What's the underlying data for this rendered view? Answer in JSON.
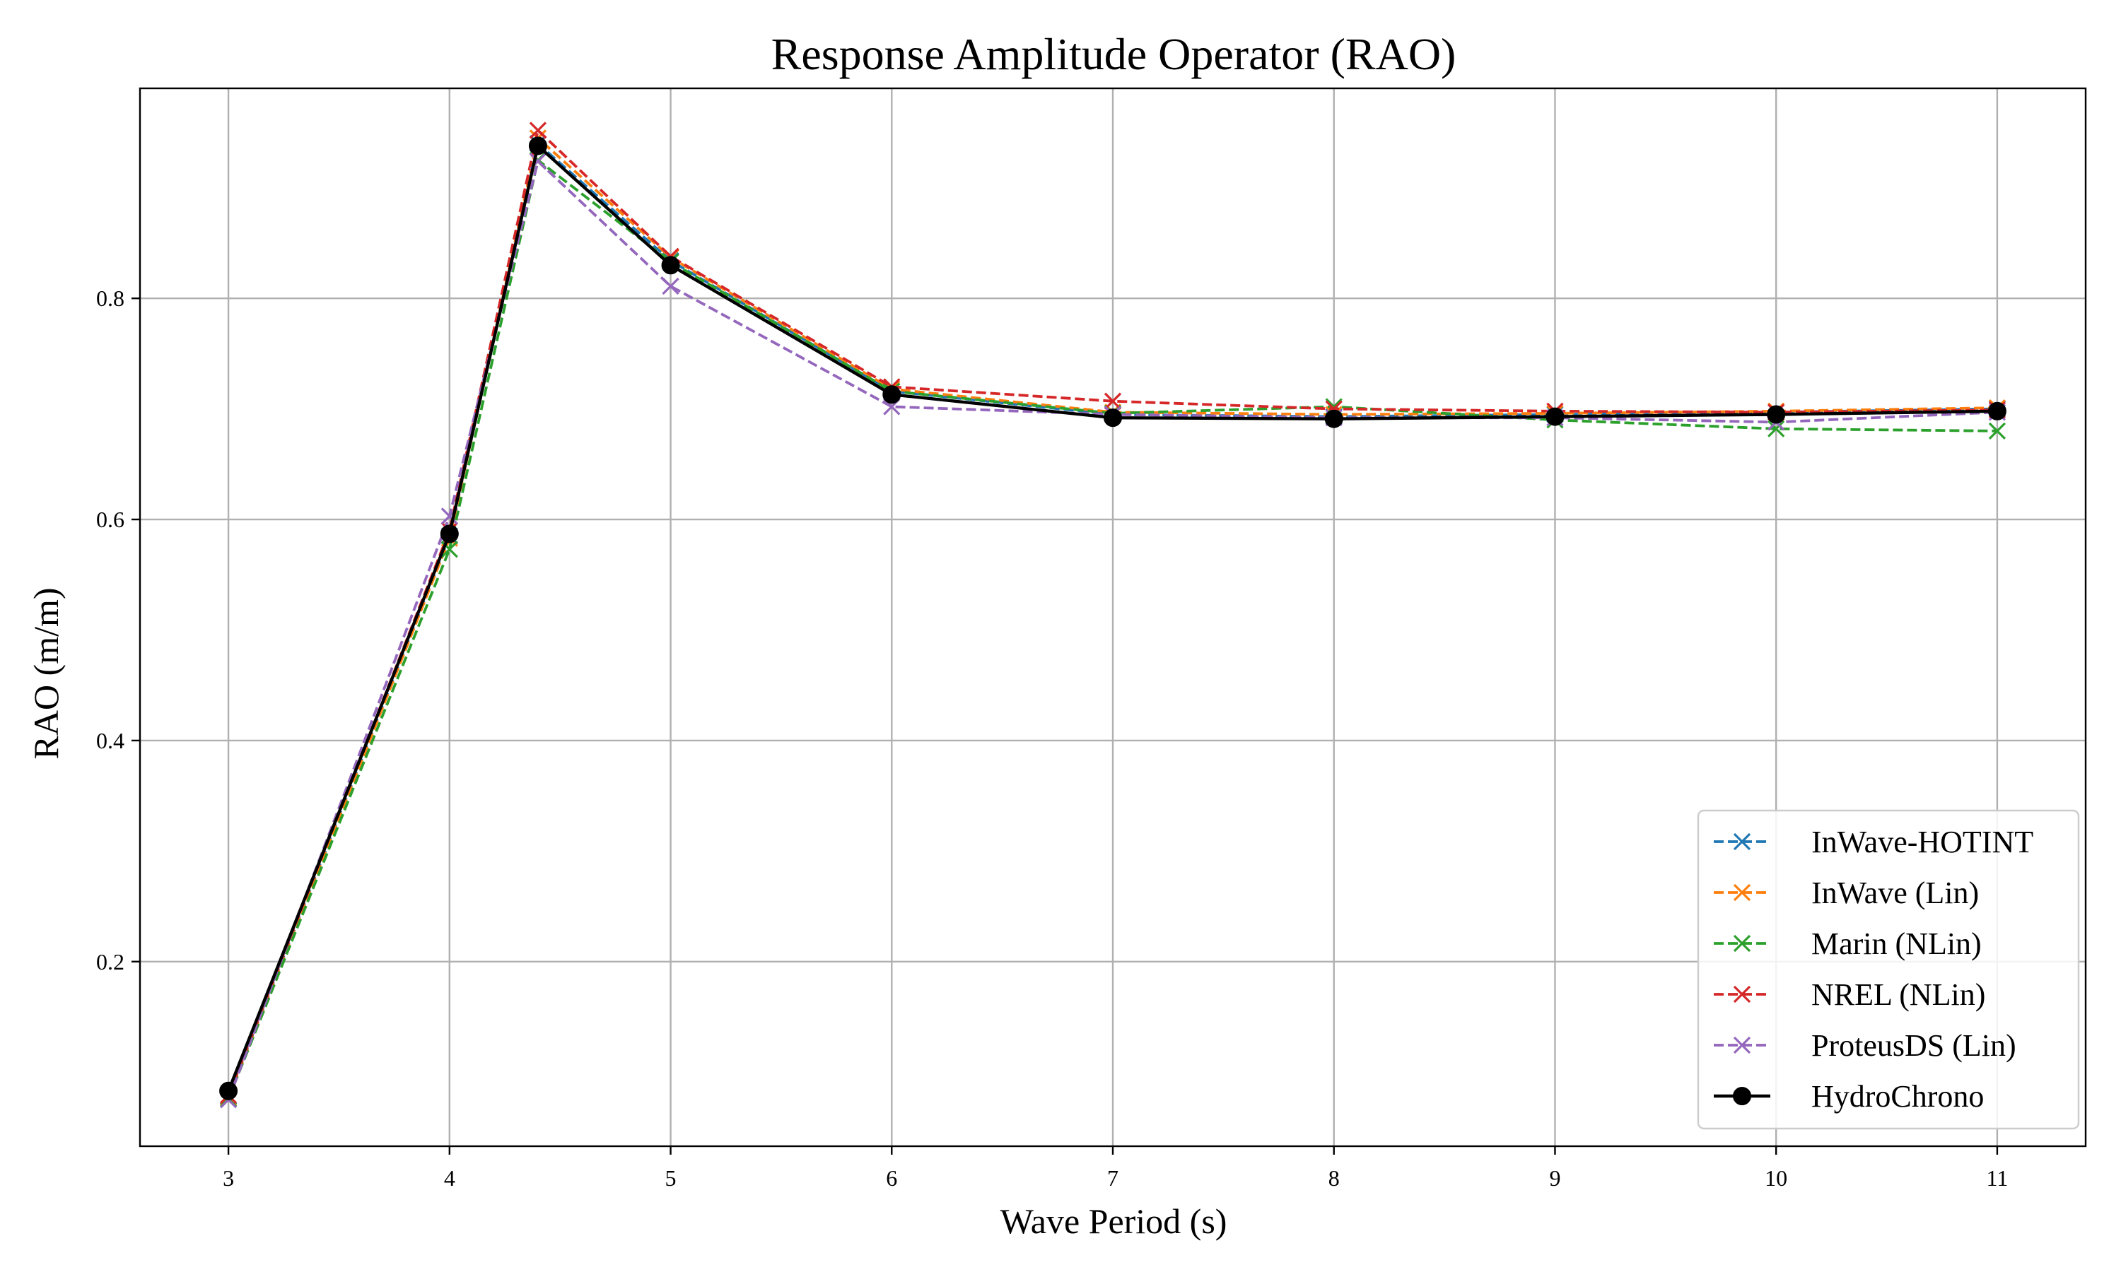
{
  "chart_data": {
    "type": "line",
    "title": "Response Amplitude Operator (RAO)",
    "xlabel": "Wave Period (s)",
    "ylabel": "RAO (m/m)",
    "xlim": [
      2.6,
      11.4
    ],
    "ylim": [
      0.033,
      0.99
    ],
    "xticks": [
      3,
      4,
      5,
      6,
      7,
      8,
      9,
      10,
      11
    ],
    "yticks": [
      0.2,
      0.4,
      0.6,
      0.8
    ],
    "ytick_labels": [
      "0.2",
      "0.4",
      "0.6",
      "0.8"
    ],
    "grid": true,
    "legend_position": "lower-right",
    "x": [
      3,
      4,
      4.4,
      5,
      6,
      7,
      8,
      9,
      10,
      11
    ],
    "series": [
      {
        "name": "InWave-HOTINT",
        "color": "#1f77b4",
        "style": "dashed",
        "marker": "x",
        "values": [
          0.078,
          0.585,
          0.94,
          0.834,
          0.716,
          0.695,
          0.693,
          0.695,
          0.697,
          0.7
        ]
      },
      {
        "name": "InWave (Lin)",
        "color": "#ff7f0e",
        "style": "dashed",
        "marker": "x",
        "values": [
          0.077,
          0.583,
          0.945,
          0.837,
          0.718,
          0.697,
          0.695,
          0.696,
          0.698,
          0.701
        ]
      },
      {
        "name": "Marin (NLin)",
        "color": "#2ca02c",
        "style": "dashed",
        "marker": "x",
        "values": [
          0.076,
          0.573,
          0.925,
          0.833,
          0.716,
          0.696,
          0.702,
          0.69,
          0.682,
          0.68
        ]
      },
      {
        "name": "NREL (NLin)",
        "color": "#d62728",
        "style": "dashed",
        "marker": "x",
        "values": [
          0.079,
          0.59,
          0.952,
          0.838,
          0.72,
          0.707,
          0.7,
          0.698,
          0.697,
          0.699
        ]
      },
      {
        "name": "ProteusDS (Lin)",
        "color": "#9467bd",
        "style": "dashed",
        "marker": "x",
        "values": [
          0.075,
          0.603,
          0.924,
          0.811,
          0.702,
          0.695,
          0.692,
          0.692,
          0.688,
          0.697
        ]
      },
      {
        "name": "HydroChrono",
        "color": "#000000",
        "style": "solid",
        "marker": "o",
        "values": [
          0.083,
          0.587,
          0.938,
          0.83,
          0.713,
          0.692,
          0.691,
          0.693,
          0.695,
          0.698
        ]
      }
    ]
  }
}
